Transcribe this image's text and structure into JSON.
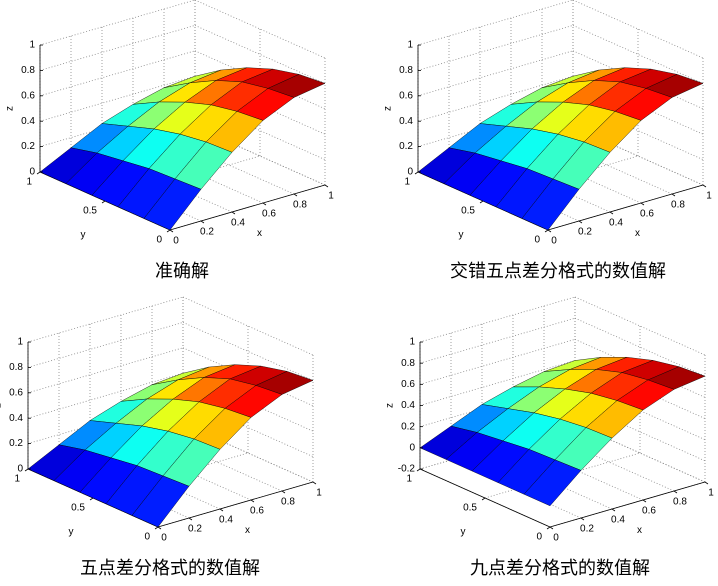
{
  "chart_data": [
    {
      "type": "surface",
      "title": "准确解",
      "x_label": "x",
      "y_label": "y",
      "z_label": "z",
      "colormap": "jet",
      "grid": true,
      "x": [
        0,
        0.2,
        0.4,
        0.6,
        0.8,
        1
      ],
      "y": [
        0,
        0.2,
        0.4,
        0.6,
        0.8,
        1
      ],
      "z": [
        [
          0,
          0.25,
          0.47,
          0.65,
          0.76,
          0.8
        ],
        [
          0,
          0.24,
          0.46,
          0.63,
          0.74,
          0.78
        ],
        [
          0,
          0.23,
          0.43,
          0.59,
          0.7,
          0.73
        ],
        [
          0,
          0.2,
          0.38,
          0.52,
          0.62,
          0.65
        ],
        [
          0,
          0.17,
          0.31,
          0.43,
          0.51,
          0.54
        ],
        [
          0,
          0.12,
          0.24,
          0.32,
          0.38,
          0.4
        ]
      ],
      "xlim": [
        0,
        1
      ],
      "ylim": [
        0,
        1
      ],
      "zlim": [
        0,
        1
      ],
      "xticks": [
        0,
        0.2,
        0.4,
        0.6,
        0.8,
        1
      ],
      "yticks": [
        0,
        0.5,
        1
      ],
      "zticks": [
        0,
        0.2,
        0.4,
        0.6,
        0.8,
        1
      ]
    },
    {
      "type": "surface",
      "title": "交错五点差分格式的数值解",
      "x_label": "x",
      "y_label": "y",
      "z_label": "z",
      "colormap": "jet",
      "grid": true,
      "x": [
        0,
        0.2,
        0.4,
        0.6,
        0.8,
        1
      ],
      "y": [
        0,
        0.2,
        0.4,
        0.6,
        0.8,
        1
      ],
      "z": [
        [
          0,
          0.25,
          0.47,
          0.65,
          0.76,
          0.8
        ],
        [
          0,
          0.24,
          0.46,
          0.63,
          0.74,
          0.78
        ],
        [
          0,
          0.23,
          0.43,
          0.59,
          0.7,
          0.73
        ],
        [
          0,
          0.2,
          0.38,
          0.52,
          0.62,
          0.65
        ],
        [
          0,
          0.17,
          0.31,
          0.43,
          0.51,
          0.54
        ],
        [
          0,
          0.12,
          0.24,
          0.32,
          0.38,
          0.4
        ]
      ],
      "xlim": [
        0,
        1
      ],
      "ylim": [
        0,
        1
      ],
      "zlim": [
        0,
        1
      ],
      "xticks": [
        0,
        0.2,
        0.4,
        0.6,
        0.8,
        1
      ],
      "yticks": [
        0,
        0.5,
        1
      ],
      "zticks": [
        0,
        0.2,
        0.4,
        0.6,
        0.8,
        1
      ]
    },
    {
      "type": "surface",
      "title": "五点差分格式的数值解",
      "x_label": "x",
      "y_label": "y",
      "z_label": "z",
      "colormap": "jet",
      "grid": true,
      "x": [
        0,
        0.2,
        0.4,
        0.6,
        0.8,
        1
      ],
      "y": [
        0,
        0.2,
        0.4,
        0.6,
        0.8,
        1
      ],
      "z": [
        [
          0,
          0.25,
          0.47,
          0.65,
          0.76,
          0.8
        ],
        [
          0,
          0.24,
          0.46,
          0.63,
          0.74,
          0.78
        ],
        [
          0,
          0.23,
          0.43,
          0.59,
          0.7,
          0.73
        ],
        [
          0,
          0.2,
          0.38,
          0.52,
          0.62,
          0.65
        ],
        [
          0,
          0.17,
          0.31,
          0.43,
          0.51,
          0.54
        ],
        [
          0,
          0.12,
          0.24,
          0.32,
          0.38,
          0.4
        ]
      ],
      "xlim": [
        0,
        1
      ],
      "ylim": [
        0,
        1
      ],
      "zlim": [
        0,
        1
      ],
      "xticks": [
        0,
        0.2,
        0.4,
        0.6,
        0.8,
        1
      ],
      "yticks": [
        0,
        0.5,
        1
      ],
      "zticks": [
        0,
        0.2,
        0.4,
        0.6,
        0.8,
        1
      ]
    },
    {
      "type": "surface",
      "title": "九点差分格式的数值解",
      "x_label": "x",
      "y_label": "y",
      "z_label": "z",
      "colormap": "jet",
      "grid": true,
      "x": [
        0,
        0.2,
        0.4,
        0.6,
        0.8,
        1
      ],
      "y": [
        0,
        0.2,
        0.4,
        0.6,
        0.8,
        1
      ],
      "z": [
        [
          0,
          0.25,
          0.47,
          0.65,
          0.76,
          0.8
        ],
        [
          0,
          0.24,
          0.46,
          0.63,
          0.74,
          0.78
        ],
        [
          0,
          0.23,
          0.43,
          0.59,
          0.7,
          0.73
        ],
        [
          0,
          0.2,
          0.38,
          0.52,
          0.62,
          0.65
        ],
        [
          0,
          0.17,
          0.31,
          0.43,
          0.51,
          0.54
        ],
        [
          0,
          0.12,
          0.24,
          0.32,
          0.38,
          0.4
        ]
      ],
      "xlim": [
        0,
        1
      ],
      "ylim": [
        0,
        1
      ],
      "zlim": [
        -0.2,
        1
      ],
      "xticks": [
        0,
        0.2,
        0.4,
        0.6,
        0.8,
        1
      ],
      "yticks": [
        0,
        0.5,
        1
      ],
      "zticks": [
        -0.2,
        0,
        0.2,
        0.4,
        0.6,
        0.8,
        1
      ]
    }
  ]
}
